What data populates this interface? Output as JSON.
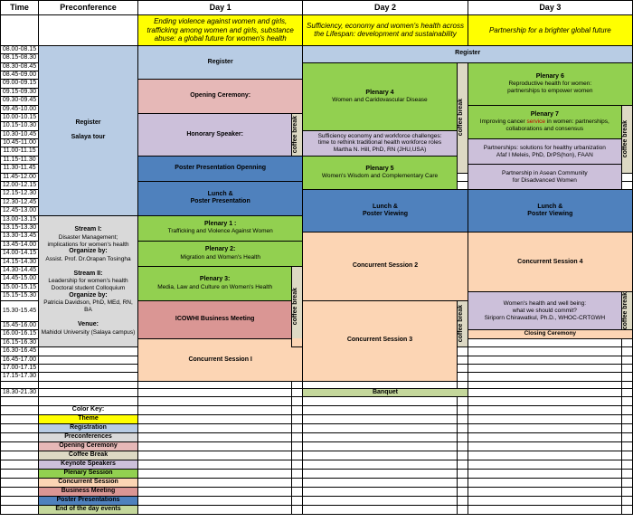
{
  "headers": {
    "time": "Time",
    "preconf": "Preconference",
    "d1": "Day 1",
    "d2": "Day 2",
    "d3": "Day 3"
  },
  "themes": {
    "d1": "Ending violence against women and girls, trafficking among women and girls, substance abuse: a global future for women's health",
    "d2": "Sufficiency, economy and women's health across the Lifespan: development and sustainability",
    "d3": "Partnership for a brighter global future"
  },
  "times": [
    "08.00-08.15",
    "08.15-08.30",
    "08.30-08.45",
    "08.45-09.00",
    "09.00-09.15",
    "09.15-09.30",
    "09.30-09.45",
    "09.45-10.00",
    "10.00-10.15",
    "10.15-10.30",
    "10.30-10.45",
    "10.45-11.00",
    "11.00-11.15",
    "11.15-11.30",
    "11.30-11.45",
    "11.45-12.00",
    "12.00-12.15",
    "12.15-12.30",
    "12.30-12.45",
    "12.45-13.00",
    "13.00-13.15",
    "13.15-13.30",
    "13.30-13.45",
    "13.45-14.00",
    "14.00-14.15",
    "14.15-14.30",
    "14.30-14.45",
    "14.45-15.00",
    "15.00-15.15",
    "15.15-15.30",
    "15.30-15.45",
    "15.45-16.00",
    "16.00-16.15",
    "16.15-16.30",
    "16.30-16.45",
    "16.45-17.00",
    "17.00-17.15",
    "17.15-17.30",
    "",
    "18.30-21.30"
  ],
  "preconf": {
    "register_title": "Register",
    "register_sub": "Salaya tour",
    "stream1_t": "Stream I:",
    "stream1_a": "Disaster Management;",
    "stream1_b": "implications for women's health",
    "stream1_org_t": "Organize by:",
    "stream1_org": "Assist. Prof. Dr.Orapan Tosingha",
    "stream2_t": "Stream II:",
    "stream2_a": "Leadership for women's health",
    "stream2_b": "Doctoral student Colloquium",
    "stream2_org_t": "Organize by:",
    "stream2_org": "Patricia Davidson, PhD, MEd, RN, BA",
    "venue_t": "Venue:",
    "venue": "Mahidol University (Salaya campus)"
  },
  "d1": {
    "register": "Register",
    "opening": "Opening Ceremony:",
    "honorary": "Honorary Speaker:",
    "poster_open": "Poster Presentation Openning",
    "lunch": "Lunch &",
    "lunch2": "Poster Presentation",
    "p1_t": "Plenary 1 :",
    "p1_s": "Trafficking and Violence Against Women",
    "p2_t": "Plenary 2:",
    "p2_s": "Migration and Women's Health",
    "p3_t": "Plenary 3:",
    "p3_s": "Media, Law and Culture on Women's Health",
    "biz": "ICOWHI Business Meeting",
    "cs1": "Concurrent Session I"
  },
  "d2": {
    "register": "Register",
    "p4_t": "Plenary 4",
    "p4_s": "Women and Caridovascular Disease",
    "suff_a": "Sufficiency economy and workforce challenges:",
    "suff_b": "time to rethink traditional health workforce roles",
    "suff_c": "Martha N. Hill, PhD, RN (JHU,USA)",
    "p5_t": "Plenary 5",
    "p5_s": "Women's Wisdom and Complementary Care",
    "lunch": "Lunch &",
    "lunch2": "Poster Viewing",
    "cs2": "Concurrent Session 2",
    "cs3": "Concurrent Session 3",
    "banquet": "Banquet"
  },
  "d3": {
    "p6_t": "Plenary 6",
    "p6_a": "Reproductive health for women:",
    "p6_b": "partnerships to empower women",
    "p7_t": "Plenary 7",
    "p7_a1": "Improving cancer ",
    "p7_a2": "service",
    "p7_a3": " in women: partnerships,",
    "p7_b": "collaborations and consensus",
    "partA_a": "Partnerships: solutions for healthy urbanization",
    "partA_b": "Afaf I Meleis, PhD, DrPS(hon), FAAN",
    "partB_a": "Partnership in Asean Community",
    "partB_b": "for Disadvanced Women",
    "lunch": "Lunch &",
    "lunch2": "Poster Viewing",
    "cs4": "Concurrent Session 4",
    "well_a": "Women's health and well being:",
    "well_b": "what we should commit?",
    "well_c": "Siriporn Chirawatkul, Ph.D., WHOC-CRTGWH",
    "closing": "Closing Ceremony"
  },
  "cb": "coffee break",
  "colorkey": {
    "title": "Color Key:",
    "items": [
      {
        "label": "Theme",
        "cls": "c-theme"
      },
      {
        "label": "Registration",
        "cls": "c-reg"
      },
      {
        "label": "Preconferences",
        "cls": "c-preconf"
      },
      {
        "label": "Opening Ceremony",
        "cls": "c-opening"
      },
      {
        "label": "Coffee Break",
        "cls": "c-coffee"
      },
      {
        "label": "Keynote Speakers",
        "cls": "c-keynote"
      },
      {
        "label": "Plenary Session",
        "cls": "c-plenary"
      },
      {
        "label": "Concurrent Session",
        "cls": "c-concur"
      },
      {
        "label": "Business Meeting",
        "cls": "c-bizmtg"
      },
      {
        "label": "Poster Presentations",
        "cls": "c-poster"
      },
      {
        "label": "End of the day events",
        "cls": "c-endday"
      }
    ]
  },
  "colors": {
    "theme": "#ffff00",
    "reg": "#b8cce4",
    "preconf": "#d9d9d9",
    "opening": "#e6b8b7",
    "coffee": "#ddd9c4",
    "keynote": "#ccc0da",
    "plenary": "#92d050",
    "concur": "#fcd5b4",
    "bizmtg": "#da9694",
    "poster": "#4f81bd",
    "endday": "#c4d79b"
  }
}
